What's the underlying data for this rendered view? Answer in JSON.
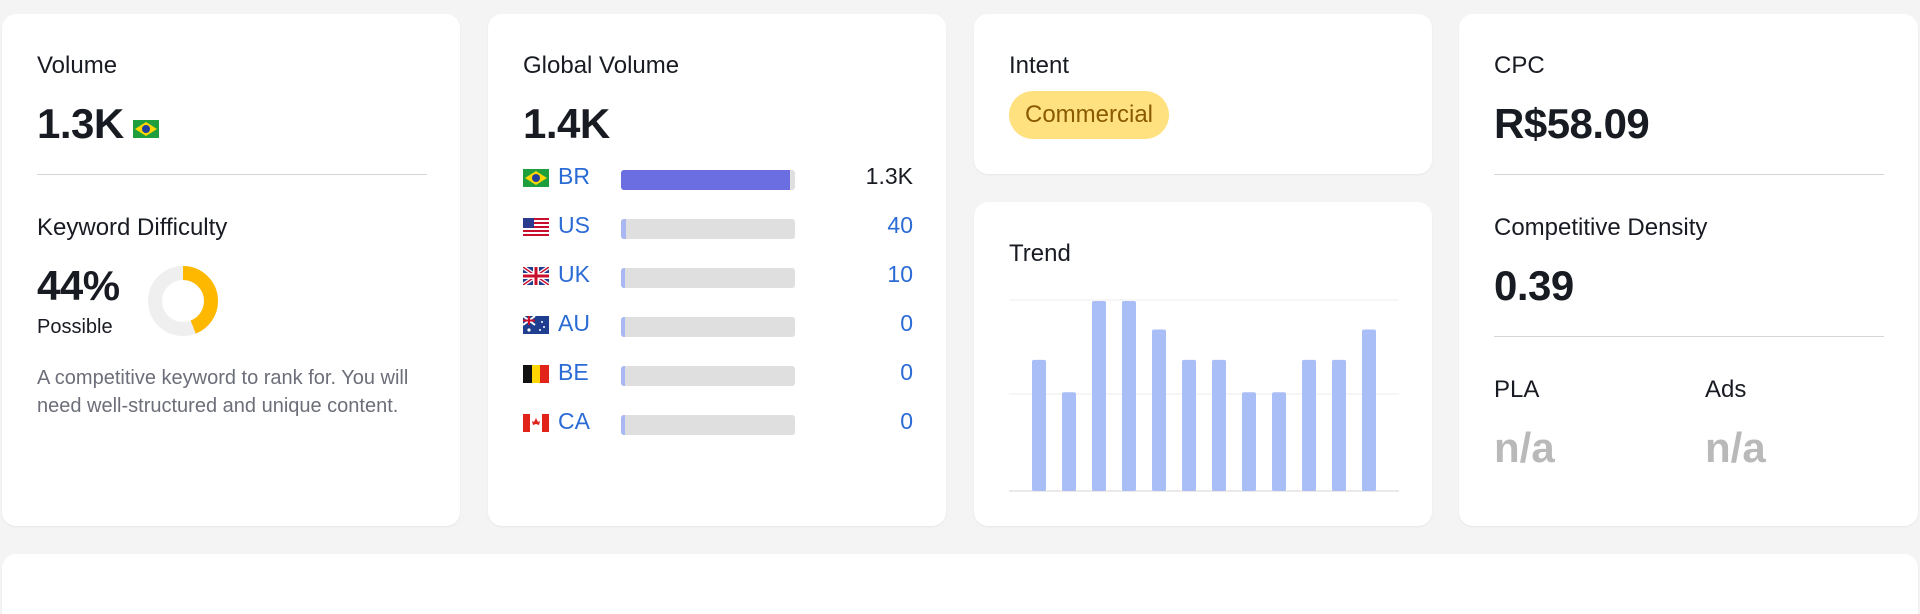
{
  "volume": {
    "label": "Volume",
    "value": "1.3K",
    "flag": "brazil-flag-icon"
  },
  "keyword_difficulty": {
    "label": "Keyword Difficulty",
    "value": "44%",
    "percent": 44,
    "level": "Possible",
    "note": "A competitive keyword to rank for. You will need well-structured and unique content.",
    "color": "#ffb800"
  },
  "global_volume": {
    "label": "Global Volume",
    "value": "1.4K",
    "bar_color": "#6a6ee0",
    "countries": [
      {
        "code": "BR",
        "value": "1.3K",
        "share": 0.97,
        "flag": "brazil-flag-icon"
      },
      {
        "code": "US",
        "value": "40",
        "share": 0.03,
        "flag": "usa-flag-icon"
      },
      {
        "code": "UK",
        "value": "10",
        "share": 0.01,
        "flag": "uk-flag-icon"
      },
      {
        "code": "AU",
        "value": "0",
        "share": 0.0,
        "flag": "australia-flag-icon"
      },
      {
        "code": "BE",
        "value": "0",
        "share": 0.0,
        "flag": "belgium-flag-icon"
      },
      {
        "code": "CA",
        "value": "0",
        "share": 0.0,
        "flag": "canada-flag-icon"
      }
    ]
  },
  "intent": {
    "label": "Intent",
    "value": "Commercial",
    "color": "#ffe180"
  },
  "trend": {
    "label": "Trend",
    "bar_color": "#a9bdf7",
    "values": [
      0.69,
      0.52,
      1.0,
      1.0,
      0.85,
      0.69,
      0.69,
      0.52,
      0.52,
      0.69,
      0.69,
      0.85
    ]
  },
  "cpc": {
    "label": "CPC",
    "value": "R$58.09"
  },
  "competitive_density": {
    "label": "Competitive Density",
    "value": "0.39"
  },
  "pla": {
    "label": "PLA",
    "value": "n/a"
  },
  "ads": {
    "label": "Ads",
    "value": "n/a"
  }
}
